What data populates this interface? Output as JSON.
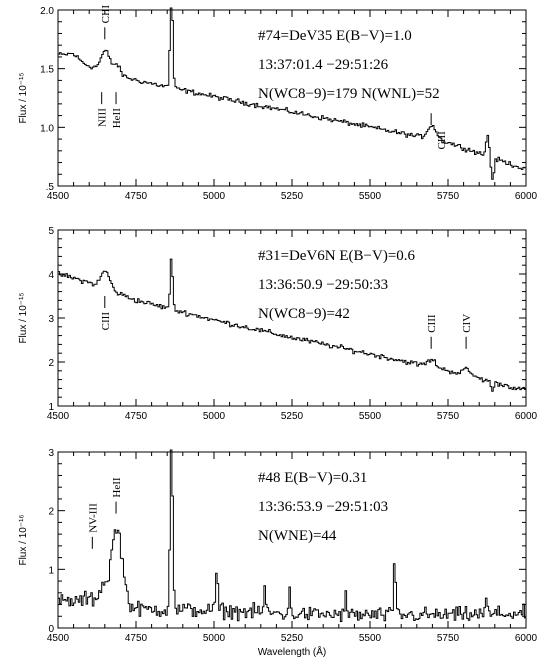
{
  "chart_data": [
    {
      "type": "line",
      "xlim": [
        4500,
        6000
      ],
      "ylim": [
        0.5,
        2.0
      ],
      "x_ticks": [
        4500,
        4750,
        5000,
        5250,
        5500,
        5750,
        6000
      ],
      "y_ticks": [
        0.5,
        1.0,
        1.5,
        2.0
      ],
      "y_tick_labels": [
        ".5",
        "1.0",
        "1.5",
        "2.0"
      ],
      "ylabel": "Flux / 10⁻¹⁵",
      "xlabel": "",
      "annotations": [
        "#74=DeV35  E(B−V)=1.0",
        "13:37:01.4  −29:51:26",
        "N(WC8−9)=179  N(WNL)=52"
      ],
      "line_labels": [
        {
          "text": "CIII",
          "wavelength": 4650,
          "pos": "above",
          "y": 1.75
        },
        {
          "text": "NIII",
          "wavelength": 4640,
          "pos": "below",
          "y": 1.3
        },
        {
          "text": "HeII",
          "wavelength": 4686,
          "pos": "below",
          "y": 1.3
        },
        {
          "text": "CIII",
          "wavelength": 5696,
          "pos": "right",
          "y": 0.95
        }
      ],
      "spectrum": {
        "continuum": [
          [
            4500,
            1.62
          ],
          [
            4600,
            1.52
          ],
          [
            4750,
            1.4
          ],
          [
            5000,
            1.26
          ],
          [
            5250,
            1.13
          ],
          [
            5500,
            1.0
          ],
          [
            5750,
            0.87
          ],
          [
            6000,
            0.64
          ]
        ],
        "lines": [
          {
            "c": 4545,
            "h": 0.05,
            "w": 18
          },
          {
            "c": 4650,
            "h": 0.17,
            "w": 14
          },
          {
            "c": 4686,
            "h": 0.08,
            "w": 10
          },
          {
            "c": 4861,
            "h": 0.95,
            "w": 4
          },
          {
            "c": 5696,
            "h": 0.12,
            "w": 14
          },
          {
            "c": 5875,
            "h": 0.18,
            "w": 5
          },
          {
            "c": 5890,
            "h": -0.18,
            "w": 5
          }
        ],
        "noise": 0.018
      }
    },
    {
      "type": "line",
      "xlim": [
        4500,
        6000
      ],
      "ylim": [
        1,
        5
      ],
      "x_ticks": [
        4500,
        4750,
        5000,
        5250,
        5500,
        5750,
        6000
      ],
      "y_ticks": [
        1,
        2,
        3,
        4,
        5
      ],
      "y_tick_labels": [
        "1",
        "2",
        "3",
        "4",
        "5"
      ],
      "ylabel": "Flux / 10⁻¹⁵",
      "xlabel": "",
      "annotations": [
        "#31=DeV6N  E(B−V)=0.6",
        "13:36:50.9  −29:50:33",
        "N(WC8−9)=42"
      ],
      "line_labels": [
        {
          "text": "CIII",
          "wavelength": 4650,
          "pos": "below",
          "y": 3.5
        },
        {
          "text": "CIII",
          "wavelength": 5696,
          "pos": "above",
          "y": 2.3
        },
        {
          "text": "CIV",
          "wavelength": 5808,
          "pos": "above",
          "y": 2.3
        }
      ],
      "spectrum": {
        "continuum": [
          [
            4500,
            4.0
          ],
          [
            4600,
            3.8
          ],
          [
            4750,
            3.4
          ],
          [
            5000,
            2.95
          ],
          [
            5250,
            2.55
          ],
          [
            5500,
            2.18
          ],
          [
            5750,
            1.8
          ],
          [
            6000,
            1.35
          ]
        ],
        "lines": [
          {
            "c": 4650,
            "h": 0.4,
            "w": 14
          },
          {
            "c": 4861,
            "h": 1.15,
            "w": 4
          },
          {
            "c": 5696,
            "h": 0.16,
            "w": 14
          },
          {
            "c": 5808,
            "h": 0.13,
            "w": 14
          },
          {
            "c": 5890,
            "h": -0.18,
            "w": 5
          }
        ],
        "noise": 0.05
      }
    },
    {
      "type": "line",
      "xlim": [
        4500,
        6000
      ],
      "ylim": [
        0,
        3
      ],
      "x_ticks": [
        4500,
        4750,
        5000,
        5250,
        5500,
        5750,
        6000
      ],
      "y_ticks": [
        0,
        1,
        2,
        3
      ],
      "y_tick_labels": [
        "0",
        "1",
        "2",
        "3"
      ],
      "ylabel": "Flux / 10⁻¹⁶",
      "xlabel": "Wavelength (Å)",
      "annotations": [
        "#48  E(B−V)=0.31",
        "13:36:53.9  −29:51:03",
        "N(WNE)=44"
      ],
      "line_labels": [
        {
          "text": "NV-III",
          "wavelength": 4610,
          "pos": "above",
          "y": 1.35
        },
        {
          "text": "HeII",
          "wavelength": 4686,
          "pos": "above",
          "y": 1.95
        }
      ],
      "spectrum": {
        "continuum": [
          [
            4500,
            0.45
          ],
          [
            4550,
            0.45
          ],
          [
            4600,
            0.5
          ],
          [
            4750,
            0.32
          ],
          [
            5000,
            0.3
          ],
          [
            5250,
            0.24
          ],
          [
            5500,
            0.22
          ],
          [
            5750,
            0.22
          ],
          [
            6000,
            0.25
          ]
        ],
        "lines": [
          {
            "c": 4686,
            "h": 1.3,
            "w": 18
          },
          {
            "c": 4640,
            "h": 0.25,
            "w": 10
          },
          {
            "c": 4861,
            "h": 3.2,
            "w": 4
          },
          {
            "c": 5007,
            "h": 0.75,
            "w": 3
          },
          {
            "c": 5577,
            "h": 1.0,
            "w": 3
          },
          {
            "c": 5160,
            "h": 0.45,
            "w": 3
          },
          {
            "c": 5240,
            "h": 0.35,
            "w": 3
          },
          {
            "c": 5420,
            "h": 0.3,
            "w": 3
          },
          {
            "c": 5870,
            "h": 0.25,
            "w": 3
          }
        ],
        "noise": 0.11
      }
    }
  ]
}
